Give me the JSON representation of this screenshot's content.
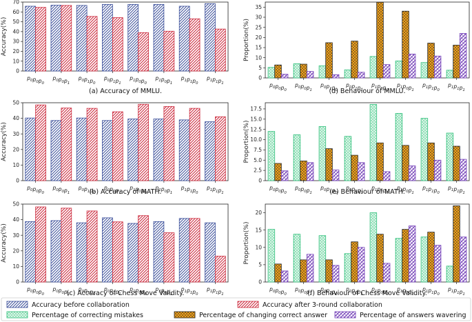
{
  "chart_data": [
    {
      "id": "a",
      "type": "bar",
      "caption": "(a) Accuracy of MMLU.",
      "ylabel": "Accuracy(%)",
      "ylim": [
        0,
        70
      ],
      "yticks": [
        0,
        10,
        20,
        30,
        40,
        50,
        60,
        70
      ],
      "categories": [
        "p0p0p0",
        "p0p0p1",
        "p0p1p0",
        "p0p1p1",
        "p1p0p0",
        "p1p0p1",
        "p1p1p0",
        "p1p1p1"
      ],
      "series": [
        {
          "name": "Accuracy before collaboration",
          "values": [
            65.8,
            66.8,
            66.6,
            67.6,
            67.6,
            67.6,
            65.8,
            68.4
          ]
        },
        {
          "name": "Accuracy after 3-round collaboration",
          "values": [
            64.6,
            66.6,
            55.4,
            54.2,
            39.0,
            40.4,
            53.0,
            42.6
          ]
        }
      ]
    },
    {
      "id": "b",
      "type": "bar",
      "caption": "(b) Accuracy of MATH.",
      "ylabel": "Accuracy(%)",
      "ylim": [
        0,
        50
      ],
      "yticks": [
        0,
        10,
        20,
        30,
        40,
        50
      ],
      "categories": [
        "p0p0p0",
        "p0p0p1",
        "p0p1p0",
        "p0p1p1",
        "p1p0p0",
        "p1p0p1",
        "p1p1p0",
        "p1p1p1"
      ],
      "series": [
        {
          "name": "Accuracy before collaboration",
          "values": [
            40.2,
            38.6,
            40.2,
            38.6,
            39.6,
            39.6,
            39.0,
            37.8
          ]
        },
        {
          "name": "Accuracy after 3-round collaboration",
          "values": [
            48.6,
            46.6,
            46.4,
            44.2,
            49.0,
            47.6,
            46.4,
            41.0
          ]
        }
      ]
    },
    {
      "id": "c",
      "type": "bar",
      "caption": "(c) Accuracy of Chess Move Validity.",
      "ylabel": "Accuracy(%)",
      "ylim": [
        0,
        50
      ],
      "yticks": [
        0,
        10,
        20,
        30,
        40,
        50
      ],
      "categories": [
        "p0p0p0",
        "p0p0p1",
        "p0p1p0",
        "p0p1p1",
        "p1p0p0",
        "p1p0p1",
        "p1p1p0",
        "p1p1p1"
      ],
      "series": [
        {
          "name": "Accuracy before collaboration",
          "values": [
            38.8,
            39.4,
            38.0,
            41.2,
            37.6,
            38.8,
            40.8,
            38.0
          ]
        },
        {
          "name": "Accuracy after 3-round collaboration",
          "values": [
            48.2,
            47.4,
            45.6,
            38.6,
            42.6,
            31.6,
            40.8,
            16.6
          ]
        }
      ]
    },
    {
      "id": "d",
      "type": "bar",
      "caption": "(d) Behaviour of MMLU.",
      "ylabel": "Proportion(%)",
      "ylim": [
        0,
        37.5
      ],
      "yticks": [
        0,
        5,
        10,
        15,
        20,
        25,
        30,
        35
      ],
      "categories": [
        "p0p0p0",
        "p0p0p1",
        "p0p1p0",
        "p0p1p1",
        "p1p0p0",
        "p1p0p1",
        "p1p1p0",
        "p1p1p1"
      ],
      "series": [
        {
          "name": "Percentage of correcting mistakes",
          "values": [
            5.2,
            7.0,
            6.0,
            4.0,
            10.6,
            8.4,
            7.6,
            3.8
          ]
        },
        {
          "name": "Percentage of changing correct answer",
          "values": [
            6.4,
            6.8,
            17.4,
            18.2,
            37.4,
            33.0,
            17.2,
            16.2
          ]
        },
        {
          "name": "Percentage of answers wavering",
          "values": [
            1.8,
            3.2,
            1.6,
            2.8,
            6.6,
            11.8,
            10.8,
            22.0
          ]
        }
      ]
    },
    {
      "id": "e",
      "type": "bar",
      "caption": "(e) Behaviour of MATH.",
      "ylabel": "Proportion(%)",
      "ylim": [
        0,
        19
      ],
      "yticks": [
        0,
        2.5,
        5.0,
        7.5,
        10.0,
        12.5,
        15.0,
        17.5
      ],
      "categories": [
        "p0p0p0",
        "p0p0p1",
        "p0p1p0",
        "p0p1p1",
        "p1p0p0",
        "p1p0p1",
        "p1p1p0",
        "p1p1p1"
      ],
      "series": [
        {
          "name": "Percentage of correcting mistakes",
          "values": [
            12.0,
            11.2,
            13.2,
            10.8,
            18.6,
            16.4,
            15.2,
            11.6
          ]
        },
        {
          "name": "Percentage of changing correct answer",
          "values": [
            4.2,
            4.8,
            7.8,
            6.2,
            9.2,
            8.6,
            9.2,
            8.4
          ]
        },
        {
          "name": "Percentage of answers wavering",
          "values": [
            2.4,
            4.4,
            2.6,
            4.4,
            2.2,
            3.6,
            5.0,
            5.2
          ]
        }
      ]
    },
    {
      "id": "f",
      "type": "bar",
      "caption": "(f) Behaviour of Chess Move Validity.",
      "ylabel": "Proportion(%)",
      "ylim": [
        0,
        22.5
      ],
      "yticks": [
        0,
        5,
        10,
        15,
        20
      ],
      "categories": [
        "p0p0p0",
        "p0p0p1",
        "p0p1p0",
        "p0p1p1",
        "p1p0p0",
        "p1p0p1",
        "p1p1p0",
        "p1p1p1"
      ],
      "series": [
        {
          "name": "Percentage of correcting mistakes",
          "values": [
            15.2,
            13.8,
            13.4,
            8.2,
            20.0,
            12.6,
            13.0,
            4.6
          ]
        },
        {
          "name": "Percentage of changing correct answer",
          "values": [
            5.2,
            6.4,
            6.4,
            11.6,
            13.8,
            15.2,
            14.4,
            22.0
          ]
        },
        {
          "name": "Percentage of answers wavering",
          "values": [
            3.2,
            8.0,
            4.8,
            10.0,
            5.4,
            16.2,
            10.6,
            13.0
          ]
        }
      ]
    }
  ],
  "legend": [
    "Accuracy before collaboration",
    "Accuracy after 3-round collaboration",
    "Percentage of correcting mistakes",
    "Percentage of changing correct answer",
    "Percentage of answers wavering"
  ],
  "colors": {
    "before": "#3b4f9a",
    "after": "#cc2a3d",
    "correcting": "#2fbf7a",
    "changing": "#222222",
    "changing_fill": "#f0a11c",
    "wavering": "#7440b8"
  }
}
